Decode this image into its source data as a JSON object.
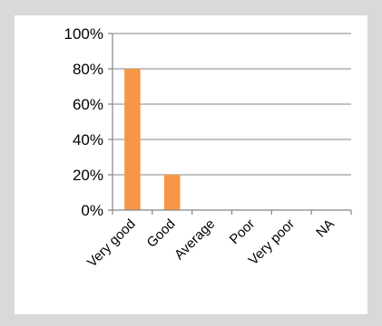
{
  "chart_data": {
    "type": "bar",
    "categories": [
      "Very good",
      "Good",
      "Average",
      "Poor",
      "Very poor",
      "NA"
    ],
    "values": [
      80,
      20,
      0,
      0,
      0,
      0
    ],
    "ylim": [
      0,
      100
    ],
    "yticks": [
      "0%",
      "20%",
      "40%",
      "60%",
      "80%",
      "100%"
    ],
    "title": "",
    "xlabel": "",
    "ylabel": "",
    "grid": true,
    "legend": "none",
    "bar_color": "#f79646"
  }
}
